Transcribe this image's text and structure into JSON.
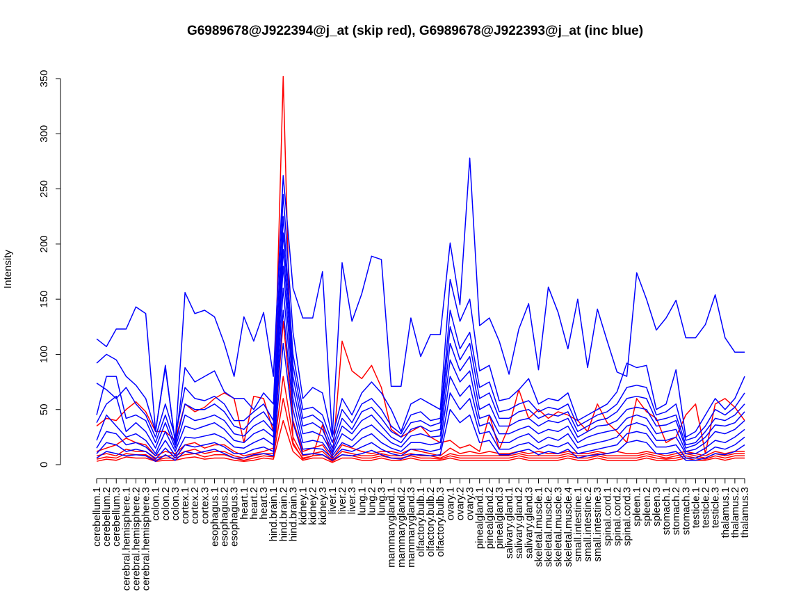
{
  "chart_data": {
    "type": "line",
    "title": "G6989678@J922394@j_at (skip red), G6989678@J922393@j_at (inc blue)",
    "xlabel": "",
    "ylabel": "Intensity",
    "ylim": [
      0,
      350
    ],
    "yticks": [
      0,
      50,
      100,
      150,
      200,
      250,
      300,
      350
    ],
    "grid": false,
    "categories": [
      "cerebellum.1",
      "cerebellum.2",
      "cerebellum.3",
      "cerebral.hemisphere.1",
      "cerebral.hemisphere.2",
      "cerebral.hemisphere.3",
      "colon.1",
      "colon.2",
      "colon.3",
      "cortex.1",
      "cortex.2",
      "cortex.3",
      "esophagus.1",
      "esophagus.2",
      "esophagus.3",
      "heart.1",
      "heart.2",
      "heart.3",
      "hind.brain.1",
      "hind.brain.2",
      "hind.brain.3",
      "kidney.1",
      "kidney.2",
      "kidney.3",
      "liver.1",
      "liver.2",
      "liver.3",
      "lung.1",
      "lung.2",
      "lung.3",
      "mammarygland.1",
      "mammarygland.2",
      "mammarygland.3",
      "olfactory.bulb.1",
      "olfactory.bulb.2",
      "olfactory.bulb.3",
      "ovary.1",
      "ovary.2",
      "ovary.3",
      "pinealgland.1",
      "pinealgland.2",
      "pinealgland.3",
      "salivary.gland.1",
      "salivary.gland.2",
      "salivary.gland.3",
      "skeletal.muscle.1",
      "skeletal.muscle.2",
      "skeletal.muscle.3",
      "skeletal.muscle.4",
      "small.intestine.1",
      "small.intestine.2",
      "small.intestine.3",
      "spinal.cord.1",
      "spinal.cord.2",
      "spinal.cord.3",
      "spleen.1",
      "spleen.2",
      "spleen.3",
      "stomach.1",
      "stomach.2",
      "stomach.3",
      "testicle.1",
      "testicle.2",
      "testicle.3",
      "thalamus.1",
      "thalamus.2",
      "thalamus.3"
    ],
    "tick_labels": [
      "cerebellum.1",
      "cerebellum.2",
      "cerebellum.3",
      "cerebral.hemisphere.1",
      "cerebral.hemisphere.2",
      "cerebral.hemisphere.3",
      "colon.1",
      "colon.2",
      "colon.3",
      "cortex.1",
      "cortex.2",
      "cortex.3",
      "esophagus.1",
      "esophagus.2",
      "esophagus.3",
      "heart.1",
      "heart.2",
      "heart.3",
      "hind.brain.1",
      "hind.brain.2",
      "hind.brain.3",
      "kidney.1",
      "kidney.2",
      "kidney.3",
      "liver.1",
      "liver.2",
      "liver.3",
      "lung.1",
      "lung.2",
      "lung.3",
      "mammarygland.1",
      "mammarygland.2",
      "mammarygland.3",
      "olfactory.bulb.1",
      "olfactory.bulb.2",
      "olfactory.bulb.3",
      "ovary.1",
      "ovary.2",
      "ovary.3",
      "pinealgland.1",
      "pinealgland.2",
      "pinealgland.3",
      "salivary.gland.1",
      "salivary.gland.2",
      "salivary.gland.3",
      "skeletal.muscle.1",
      "skeletal.muscle.2",
      "skeletal.muscle.3",
      "skeletal.muscle.4",
      "small.intestine.1",
      "small.intestine.2",
      "small.intestine.3",
      "spinal.cord.1",
      "spinal.cord.2",
      "spinal.cord.3",
      "spleen.1",
      "spleen.2",
      "spleen.3",
      "stomach.1",
      "stomach.2",
      "stomach.3",
      "testicle.1",
      "testicle.2",
      "testicle.3",
      "thalamus.1",
      "thalamus.2",
      "thalamus.3"
    ],
    "colors": {
      "skip": "#ff0000",
      "inc": "#0000ff"
    },
    "series": [
      {
        "group": "skip",
        "values": [
          35,
          42,
          40,
          50,
          57,
          48,
          30,
          30,
          22,
          55,
          48,
          52,
          60,
          65,
          60,
          20,
          62,
          60,
          30,
          352,
          20,
          5,
          8,
          36,
          5,
          112,
          85,
          78,
          90,
          70,
          32,
          25,
          30,
          35,
          25,
          20,
          22,
          15,
          18,
          12,
          45,
          14,
          35,
          68,
          42,
          50,
          42,
          48,
          45,
          40,
          30,
          55,
          38,
          30,
          20,
          60,
          48,
          42,
          20,
          25,
          45,
          55,
          10,
          55,
          60,
          52,
          40
        ]
      },
      {
        "group": "skip",
        "values": [
          12,
          15,
          18,
          24,
          20,
          18,
          8,
          12,
          10,
          18,
          20,
          15,
          18,
          18,
          12,
          8,
          10,
          12,
          15,
          130,
          40,
          12,
          15,
          18,
          5,
          18,
          15,
          12,
          10,
          12,
          12,
          10,
          14,
          12,
          10,
          8,
          15,
          10,
          12,
          10,
          12,
          10,
          10,
          12,
          10,
          12,
          10,
          10,
          12,
          10,
          10,
          12,
          10,
          12,
          10,
          10,
          12,
          10,
          8,
          10,
          12,
          10,
          8,
          12,
          10,
          12,
          12
        ]
      },
      {
        "group": "skip",
        "values": [
          8,
          10,
          8,
          14,
          12,
          12,
          6,
          8,
          8,
          12,
          14,
          10,
          12,
          12,
          8,
          6,
          8,
          10,
          10,
          80,
          25,
          8,
          10,
          12,
          4,
          12,
          10,
          8,
          8,
          10,
          8,
          8,
          10,
          8,
          8,
          6,
          10,
          8,
          8,
          8,
          8,
          8,
          8,
          10,
          8,
          8,
          8,
          8,
          10,
          8,
          8,
          10,
          8,
          8,
          8,
          8,
          10,
          8,
          6,
          8,
          10,
          8,
          6,
          10,
          8,
          10,
          10
        ]
      },
      {
        "group": "skip",
        "values": [
          5,
          7,
          6,
          10,
          9,
          9,
          4,
          6,
          6,
          9,
          10,
          7,
          9,
          9,
          6,
          4,
          6,
          8,
          7,
          60,
          18,
          6,
          8,
          9,
          3,
          9,
          8,
          6,
          6,
          8,
          6,
          6,
          8,
          6,
          6,
          5,
          8,
          6,
          6,
          6,
          6,
          6,
          6,
          8,
          6,
          6,
          6,
          6,
          8,
          6,
          6,
          8,
          6,
          6,
          6,
          6,
          8,
          6,
          5,
          6,
          8,
          6,
          5,
          8,
          6,
          8,
          8
        ]
      },
      {
        "group": "skip",
        "values": [
          3,
          5,
          4,
          7,
          6,
          6,
          3,
          4,
          4,
          6,
          7,
          5,
          6,
          6,
          4,
          3,
          4,
          6,
          5,
          40,
          12,
          4,
          6,
          6,
          2,
          6,
          6,
          4,
          4,
          6,
          4,
          4,
          6,
          4,
          4,
          4,
          6,
          4,
          4,
          4,
          4,
          4,
          4,
          6,
          4,
          4,
          4,
          4,
          6,
          4,
          4,
          6,
          4,
          4,
          4,
          4,
          6,
          4,
          4,
          4,
          6,
          4,
          4,
          6,
          4,
          6,
          6
        ]
      },
      {
        "group": "inc",
        "values": [
          114,
          107,
          123,
          123,
          143,
          137,
          30,
          90,
          20,
          156,
          137,
          140,
          134,
          110,
          80,
          134,
          112,
          138,
          80,
          262,
          160,
          133,
          133,
          175,
          25,
          183,
          130,
          155,
          189,
          186,
          71,
          71,
          133,
          98,
          118,
          118,
          201,
          145,
          278,
          126,
          133,
          112,
          82,
          123,
          146,
          86,
          161,
          138,
          105,
          150,
          88,
          141,
          112,
          84,
          80,
          174,
          150,
          122,
          133,
          149,
          115,
          115,
          127,
          154,
          115,
          102,
          102
        ]
      },
      {
        "group": "inc",
        "values": [
          92,
          100,
          95,
          80,
          72,
          60,
          30,
          88,
          20,
          88,
          75,
          80,
          85,
          66,
          60,
          60,
          50,
          65,
          55,
          245,
          120,
          60,
          70,
          65,
          25,
          60,
          45,
          65,
          75,
          65,
          50,
          30,
          55,
          60,
          55,
          50,
          168,
          130,
          150,
          85,
          90,
          58,
          60,
          68,
          78,
          55,
          60,
          58,
          65,
          40,
          45,
          50,
          55,
          66,
          92,
          88,
          90,
          50,
          55,
          86,
          25,
          30,
          45,
          60,
          50,
          60,
          80
        ]
      },
      {
        "group": "inc",
        "values": [
          74,
          68,
          60,
          70,
          55,
          45,
          25,
          55,
          25,
          70,
          60,
          58,
          62,
          55,
          40,
          40,
          48,
          55,
          40,
          225,
          100,
          50,
          52,
          45,
          20,
          50,
          38,
          55,
          60,
          50,
          35,
          28,
          45,
          48,
          40,
          42,
          140,
          105,
          120,
          70,
          75,
          48,
          50,
          55,
          58,
          48,
          52,
          50,
          55,
          35,
          40,
          45,
          48,
          55,
          70,
          72,
          70,
          45,
          48,
          55,
          22,
          25,
          35,
          50,
          45,
          52,
          65
        ]
      },
      {
        "group": "inc",
        "values": [
          45,
          80,
          80,
          42,
          45,
          40,
          20,
          45,
          18,
          55,
          50,
          50,
          55,
          48,
          35,
          32,
          42,
          48,
          35,
          210,
          90,
          42,
          45,
          38,
          15,
          42,
          32,
          48,
          52,
          42,
          30,
          25,
          38,
          40,
          35,
          38,
          125,
          95,
          110,
          60,
          65,
          42,
          42,
          48,
          50,
          42,
          46,
          44,
          48,
          30,
          35,
          40,
          42,
          48,
          60,
          62,
          60,
          40,
          42,
          45,
          18,
          20,
          30,
          42,
          40,
          45,
          55
        ]
      },
      {
        "group": "inc",
        "values": [
          38,
          55,
          62,
          30,
          38,
          30,
          15,
          38,
          15,
          45,
          40,
          42,
          45,
          40,
          28,
          26,
          35,
          40,
          30,
          195,
          80,
          35,
          38,
          32,
          12,
          35,
          28,
          40,
          45,
          35,
          25,
          20,
          32,
          35,
          30,
          32,
          110,
          85,
          98,
          50,
          55,
          35,
          35,
          40,
          42,
          35,
          40,
          38,
          42,
          25,
          30,
          35,
          36,
          40,
          50,
          52,
          50,
          35,
          36,
          40,
          15,
          18,
          25,
          36,
          35,
          38,
          48
        ]
      },
      {
        "group": "inc",
        "values": [
          22,
          45,
          35,
          25,
          28,
          22,
          10,
          30,
          12,
          35,
          32,
          35,
          38,
          32,
          22,
          20,
          28,
          32,
          25,
          180,
          70,
          28,
          30,
          26,
          10,
          28,
          22,
          32,
          36,
          28,
          20,
          16,
          26,
          28,
          25,
          26,
          95,
          75,
          85,
          42,
          45,
          28,
          28,
          32,
          35,
          28,
          32,
          30,
          35,
          20,
          25,
          28,
          30,
          32,
          42,
          45,
          42,
          28,
          30,
          32,
          12,
          14,
          20,
          30,
          28,
          32,
          40
        ]
      },
      {
        "group": "inc",
        "values": [
          15,
          30,
          28,
          18,
          20,
          16,
          8,
          22,
          8,
          25,
          24,
          26,
          28,
          24,
          16,
          15,
          20,
          24,
          18,
          160,
          60,
          20,
          22,
          20,
          8,
          20,
          16,
          24,
          28,
          20,
          15,
          12,
          20,
          20,
          18,
          20,
          80,
          62,
          72,
          35,
          38,
          20,
          20,
          25,
          28,
          20,
          25,
          22,
          28,
          15,
          18,
          20,
          22,
          25,
          35,
          38,
          35,
          22,
          22,
          25,
          10,
          10,
          15,
          22,
          20,
          25,
          32
        ]
      },
      {
        "group": "inc",
        "values": [
          10,
          20,
          18,
          12,
          14,
          12,
          5,
          15,
          6,
          18,
          16,
          18,
          20,
          16,
          10,
          10,
          14,
          16,
          12,
          140,
          50,
          14,
          15,
          14,
          6,
          14,
          12,
          16,
          20,
          14,
          10,
          8,
          14,
          14,
          12,
          14,
          65,
          50,
          60,
          28,
          30,
          14,
          14,
          18,
          20,
          14,
          18,
          16,
          20,
          10,
          12,
          14,
          16,
          18,
          28,
          30,
          28,
          16,
          16,
          18,
          6,
          6,
          10,
          16,
          14,
          18,
          25
        ]
      },
      {
        "group": "inc",
        "values": [
          6,
          12,
          10,
          8,
          9,
          8,
          3,
          9,
          4,
          12,
          10,
          12,
          14,
          10,
          6,
          6,
          9,
          10,
          8,
          110,
          38,
          9,
          10,
          9,
          4,
          9,
          8,
          10,
          13,
          9,
          6,
          5,
          9,
          9,
          8,
          9,
          50,
          38,
          45,
          20,
          22,
          9,
          9,
          12,
          14,
          9,
          12,
          10,
          14,
          6,
          8,
          9,
          10,
          12,
          20,
          22,
          20,
          10,
          10,
          12,
          4,
          4,
          6,
          10,
          9,
          12,
          18
        ]
      }
    ]
  }
}
